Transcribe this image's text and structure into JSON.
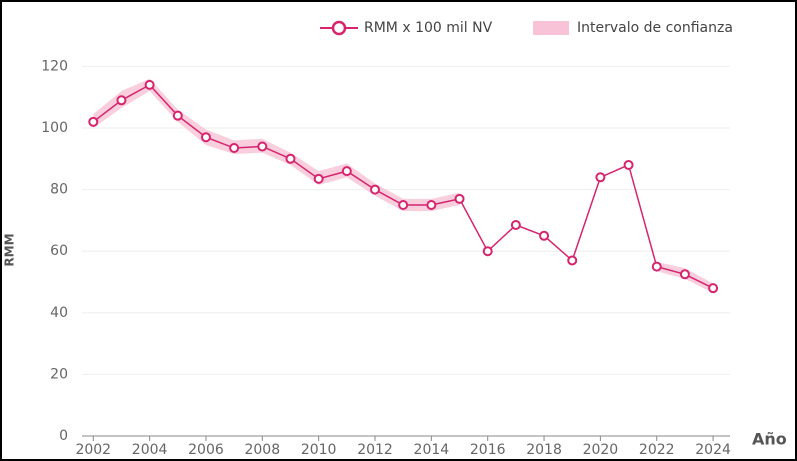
{
  "chart_data": {
    "type": "line",
    "x": [
      2002,
      2003,
      2004,
      2005,
      2006,
      2007,
      2008,
      2009,
      2010,
      2011,
      2012,
      2013,
      2014,
      2015,
      2016,
      2017,
      2018,
      2019,
      2020,
      2021,
      2022,
      2023,
      2024
    ],
    "series": [
      {
        "name": "RMM x 100 mil NV",
        "color": "#d6246e",
        "values": [
          102,
          109,
          114,
          104,
          97,
          93.5,
          94,
          90,
          83.5,
          86,
          80,
          75,
          75,
          77,
          60,
          68.5,
          65,
          57,
          84,
          88,
          55,
          52.5,
          48
        ]
      },
      {
        "name": "Intervalo de confianza",
        "color": "#f8c3d6",
        "lower": [
          100,
          106.5,
          112,
          102,
          94.5,
          91.5,
          92,
          88,
          81.5,
          84,
          78,
          73,
          73,
          75,
          null,
          null,
          null,
          null,
          null,
          null,
          53.5,
          51,
          46.5
        ],
        "upper": [
          104.5,
          112,
          116,
          106,
          99.5,
          96,
          96.5,
          92,
          86,
          88.5,
          82,
          77,
          77,
          79,
          null,
          null,
          null,
          null,
          null,
          null,
          56.5,
          54.5,
          49.5
        ]
      }
    ],
    "xlabel": "Año",
    "ylabel": "RMM",
    "xlim": [
      2001.6,
      2024.6
    ],
    "xticks": [
      2002,
      2004,
      2006,
      2008,
      2010,
      2012,
      2014,
      2016,
      2018,
      2020,
      2022,
      2024
    ],
    "ylim": [
      0,
      125
    ],
    "yticks": [
      0,
      20,
      40,
      60,
      80,
      100,
      120
    ],
    "grid": true
  }
}
